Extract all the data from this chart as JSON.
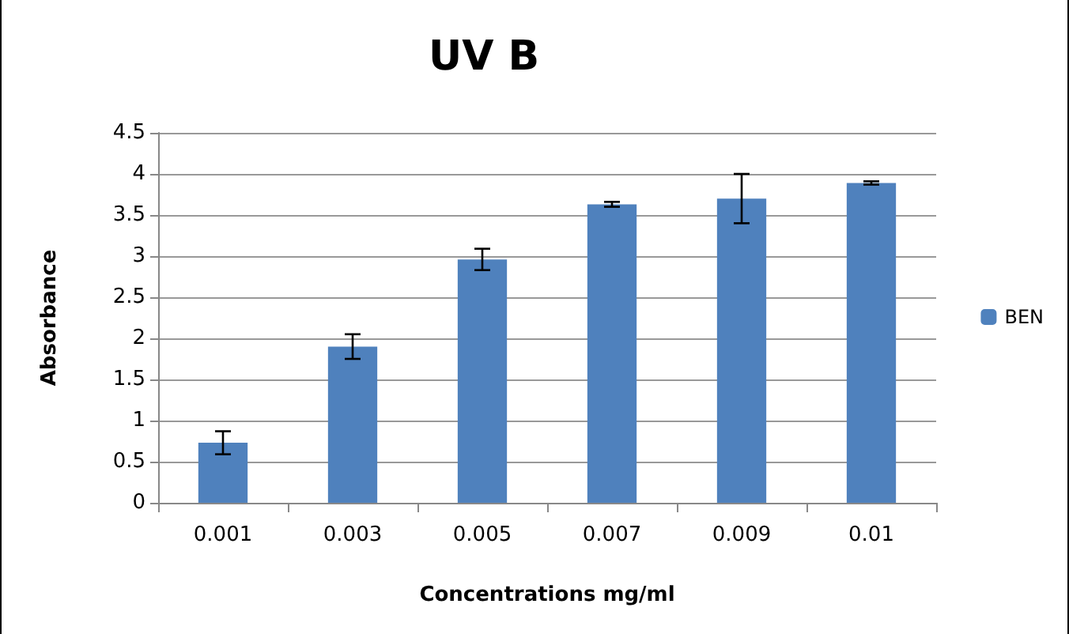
{
  "chart_data": {
    "type": "bar",
    "title": "UV B",
    "xlabel": "Concentrations mg/ml",
    "ylabel": "Absorbance",
    "categories": [
      "0.001",
      "0.003",
      "0.005",
      "0.007",
      "0.009",
      "0.01"
    ],
    "series": [
      {
        "name": "BEN",
        "color": "#4f81bd",
        "values": [
          0.73,
          1.9,
          2.96,
          3.63,
          3.7,
          3.89
        ],
        "errors": [
          0.14,
          0.15,
          0.13,
          0.03,
          0.3,
          0.02
        ]
      }
    ],
    "ylim": [
      0,
      4.5
    ],
    "yticks": [
      0,
      0.5,
      1,
      1.5,
      2,
      2.5,
      3,
      3.5,
      4,
      4.5
    ],
    "grid": "y",
    "legend": "right"
  }
}
